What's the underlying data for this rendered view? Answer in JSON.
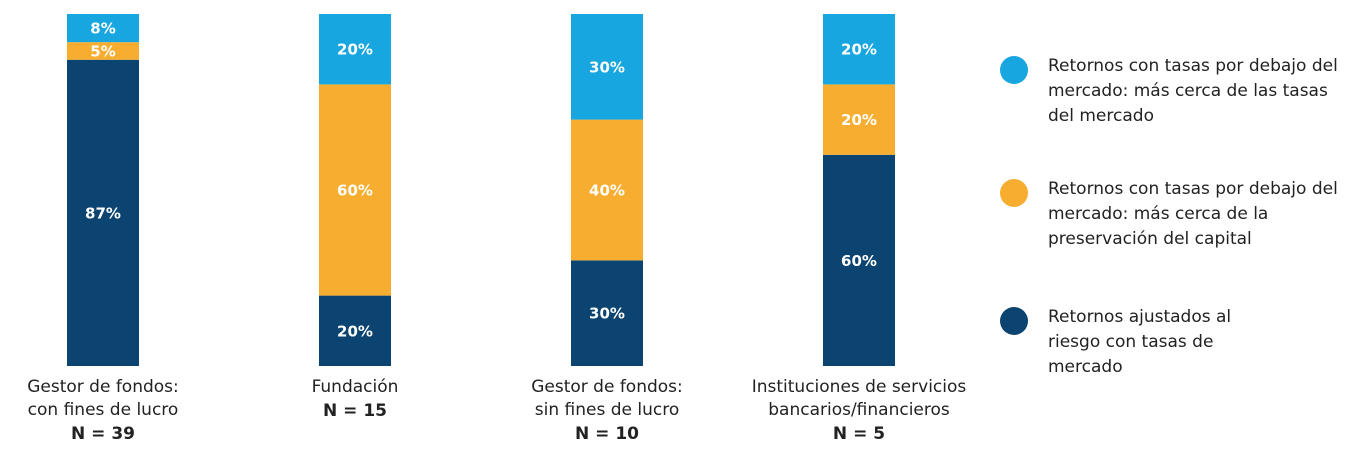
{
  "chart_data": {
    "type": "bar",
    "stacked": true,
    "categories": [
      "Gestor de fondos:\ncon fines de lucro",
      "Fundación",
      "Gestor de fondos:\nsin fines de lucro",
      "Instituciones de servicios\nbancarios/financieros"
    ],
    "sample_sizes": [
      "N = 39",
      "N = 15",
      "N = 10",
      "N = 5"
    ],
    "series": [
      {
        "name": "Retornos ajustados al riesgo con tasas de mercado",
        "color": "#0b4470",
        "values": [
          87,
          20,
          30,
          60
        ],
        "value_labels": [
          "87%",
          "20%",
          "30%",
          "60%"
        ]
      },
      {
        "name": "Retornos con tasas por debajo del mercado: más cerca de la preservación del capital",
        "color": "#f7ae30",
        "values": [
          5,
          60,
          40,
          20
        ],
        "value_labels": [
          "5%",
          "60%",
          "40%",
          "20%"
        ]
      },
      {
        "name": "Retornos con tasas por debajo del mercado: más cerca de las tasas del mercado",
        "color": "#17a6df",
        "values": [
          8,
          20,
          30,
          20
        ],
        "value_labels": [
          "8%",
          "20%",
          "30%",
          "20%"
        ]
      }
    ],
    "legend": "right"
  }
}
